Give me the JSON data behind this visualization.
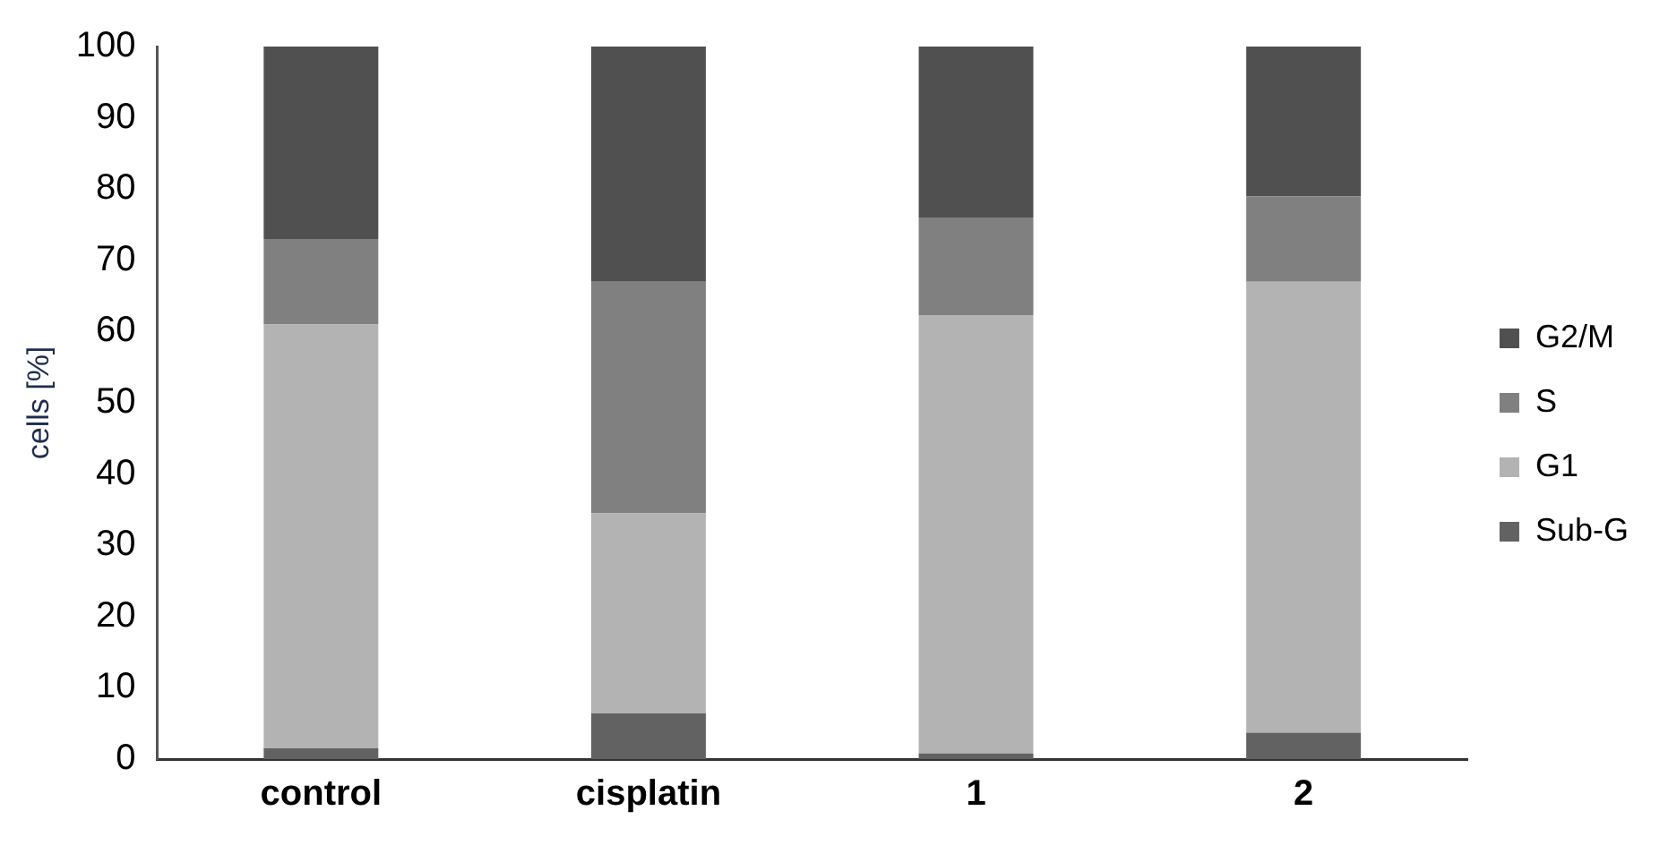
{
  "chart_data": {
    "type": "bar",
    "ylabel": "cells [%]",
    "categories": [
      "control",
      "cisplatin",
      "1",
      "2"
    ],
    "stacked": true,
    "series": [
      {
        "name": "Sub-G",
        "color": "#626262",
        "values": [
          1.5,
          6.4,
          0.8,
          3.7
        ]
      },
      {
        "name": "G1",
        "color": "#b3b3b3",
        "values": [
          59.5,
          28.1,
          61.5,
          63.3
        ]
      },
      {
        "name": "S",
        "color": "#808080",
        "values": [
          12,
          32.5,
          13.7,
          12
        ]
      },
      {
        "name": "G2/M",
        "color": "#505050",
        "values": [
          27,
          33,
          24,
          21
        ]
      }
    ],
    "ylim": [
      0,
      100
    ],
    "yticks": [
      0,
      10,
      20,
      30,
      40,
      50,
      60,
      70,
      80,
      90,
      100
    ],
    "grid": false,
    "legend": "right"
  }
}
